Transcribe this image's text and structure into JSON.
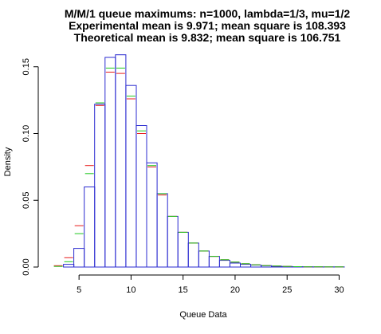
{
  "chart_data": {
    "type": "bar",
    "title_lines": [
      "M/M/1 queue maximums: n=1000, lambda=1/3, mu=1/2",
      "Experimental mean is 9.971; mean square is 108.393",
      "Theoretical mean is 9.832; mean square is 106.751"
    ],
    "xlabel": "Queue Data",
    "ylabel": "Density",
    "xlim": [
      2,
      30.5
    ],
    "ylim": [
      0,
      0.16
    ],
    "x_ticks": [
      5,
      10,
      15,
      20,
      25,
      30
    ],
    "y_ticks": [
      0.0,
      0.05,
      0.1,
      0.15
    ],
    "y_tick_labels": [
      "0.00",
      "0.05",
      "0.10",
      "0.15"
    ],
    "bin_width": 1,
    "bins": [
      {
        "left": 2.5,
        "density": 0.0
      },
      {
        "left": 3.5,
        "density": 0.002
      },
      {
        "left": 4.5,
        "density": 0.014
      },
      {
        "left": 5.5,
        "density": 0.06
      },
      {
        "left": 6.5,
        "density": 0.122
      },
      {
        "left": 7.5,
        "density": 0.157
      },
      {
        "left": 8.5,
        "density": 0.159
      },
      {
        "left": 9.5,
        "density": 0.136
      },
      {
        "left": 10.5,
        "density": 0.106
      },
      {
        "left": 11.5,
        "density": 0.078
      },
      {
        "left": 12.5,
        "density": 0.055
      },
      {
        "left": 13.5,
        "density": 0.038
      },
      {
        "left": 14.5,
        "density": 0.026
      },
      {
        "left": 15.5,
        "density": 0.018
      },
      {
        "left": 16.5,
        "density": 0.012
      },
      {
        "left": 17.5,
        "density": 0.008
      },
      {
        "left": 18.5,
        "density": 0.005
      },
      {
        "left": 19.5,
        "density": 0.003
      },
      {
        "left": 20.5,
        "density": 0.002
      },
      {
        "left": 21.5,
        "density": 0.0015
      },
      {
        "left": 22.5,
        "density": 0.001
      },
      {
        "left": 23.5,
        "density": 0.0006
      },
      {
        "left": 24.5,
        "density": 0.0004
      },
      {
        "left": 25.5,
        "density": 0.0003
      },
      {
        "left": 26.5,
        "density": 0.0002
      },
      {
        "left": 27.5,
        "density": 0.0001
      },
      {
        "left": 28.5,
        "density": 0.0001
      },
      {
        "left": 29.5,
        "density": 0.0001
      }
    ],
    "reference_series": [
      {
        "color": "#e81c1c",
        "points": [
          {
            "x": 3,
            "y": 0.001
          },
          {
            "x": 4,
            "y": 0.007
          },
          {
            "x": 5,
            "y": 0.031
          },
          {
            "x": 6,
            "y": 0.076
          },
          {
            "x": 7,
            "y": 0.121
          },
          {
            "x": 8,
            "y": 0.146
          },
          {
            "x": 9,
            "y": 0.145
          },
          {
            "x": 10,
            "y": 0.126
          },
          {
            "x": 11,
            "y": 0.1
          },
          {
            "x": 12,
            "y": 0.075
          },
          {
            "x": 13,
            "y": 0.054
          },
          {
            "x": 14,
            "y": 0.038
          },
          {
            "x": 15,
            "y": 0.026
          },
          {
            "x": 16,
            "y": 0.018
          },
          {
            "x": 17,
            "y": 0.012
          },
          {
            "x": 18,
            "y": 0.008
          },
          {
            "x": 19,
            "y": 0.0055
          },
          {
            "x": 20,
            "y": 0.0037
          },
          {
            "x": 21,
            "y": 0.0025
          },
          {
            "x": 22,
            "y": 0.0017
          },
          {
            "x": 23,
            "y": 0.0011
          },
          {
            "x": 24,
            "y": 0.0008
          },
          {
            "x": 25,
            "y": 0.0005
          },
          {
            "x": 26,
            "y": 0.0003
          },
          {
            "x": 27,
            "y": 0.0002
          },
          {
            "x": 28,
            "y": 0.0002
          },
          {
            "x": 29,
            "y": 0.0001
          },
          {
            "x": 30,
            "y": 0.0001
          }
        ]
      },
      {
        "color": "#1ec81e",
        "points": [
          {
            "x": 3,
            "y": 0.0005
          },
          {
            "x": 4,
            "y": 0.004
          },
          {
            "x": 5,
            "y": 0.025
          },
          {
            "x": 6,
            "y": 0.07
          },
          {
            "x": 7,
            "y": 0.123
          },
          {
            "x": 8,
            "y": 0.149
          },
          {
            "x": 9,
            "y": 0.149
          },
          {
            "x": 10,
            "y": 0.128
          },
          {
            "x": 11,
            "y": 0.102
          },
          {
            "x": 12,
            "y": 0.076
          },
          {
            "x": 13,
            "y": 0.055
          },
          {
            "x": 14,
            "y": 0.038
          },
          {
            "x": 15,
            "y": 0.026
          },
          {
            "x": 16,
            "y": 0.018
          },
          {
            "x": 17,
            "y": 0.012
          },
          {
            "x": 18,
            "y": 0.008
          },
          {
            "x": 19,
            "y": 0.0055
          },
          {
            "x": 20,
            "y": 0.0037
          },
          {
            "x": 21,
            "y": 0.0025
          },
          {
            "x": 22,
            "y": 0.0017
          },
          {
            "x": 23,
            "y": 0.0011
          },
          {
            "x": 24,
            "y": 0.0008
          },
          {
            "x": 25,
            "y": 0.0005
          },
          {
            "x": 26,
            "y": 0.0003
          },
          {
            "x": 27,
            "y": 0.0002
          },
          {
            "x": 28,
            "y": 0.0002
          },
          {
            "x": 29,
            "y": 0.0001
          },
          {
            "x": 30,
            "y": 0.0001
          }
        ]
      }
    ],
    "bar_color": "#2b2bd0",
    "grid": false
  }
}
